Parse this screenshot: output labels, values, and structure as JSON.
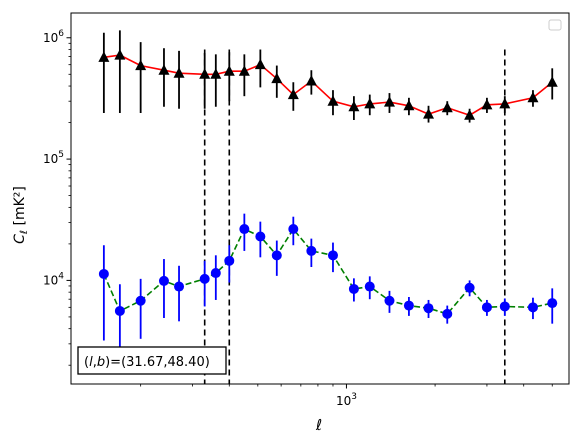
{
  "chart_data": {
    "type": "scatter",
    "title": "",
    "xlabel": "ℓ",
    "ylabel_main": "C",
    "ylabel_sub": "ℓ",
    "ylabel_unit": "[mK²]",
    "x_scale": "log",
    "y_scale": "log",
    "xlim": [
      116,
      5700
    ],
    "ylim": [
      1400,
      1600000
    ],
    "x_ticks": [
      {
        "value": 1000,
        "base": "10",
        "exp": "3"
      }
    ],
    "y_ticks": [
      {
        "value": 10000,
        "base": "10",
        "exp": "4"
      },
      {
        "value": 100000,
        "base": "10",
        "exp": "5"
      },
      {
        "value": 1000000,
        "base": "10",
        "exp": "6"
      }
    ],
    "grid": false,
    "legend_placement": "top-right",
    "vlines": [
      330,
      400,
      3450
    ],
    "annotation": {
      "prefix": "(",
      "l": "l",
      "comma": ",",
      "b": "b",
      "suffix": ")=(31.67,48.40)",
      "placement": "bottom-left"
    },
    "series": [
      {
        "marker": "triangle",
        "marker_color": "#000000",
        "line_color": "#ff0000",
        "line_style": "solid",
        "error_color": "#000000",
        "points": [
          {
            "x": 150,
            "y": 690000,
            "lo": 240000,
            "hi": 1100000
          },
          {
            "x": 170,
            "y": 720000,
            "lo": 240000,
            "hi": 1150000
          },
          {
            "x": 200,
            "y": 590000,
            "lo": 240000,
            "hi": 920000
          },
          {
            "x": 240,
            "y": 540000,
            "lo": 270000,
            "hi": 820000
          },
          {
            "x": 270,
            "y": 510000,
            "lo": 260000,
            "hi": 780000
          },
          {
            "x": 330,
            "y": 500000,
            "lo": 260000,
            "hi": 750000
          },
          {
            "x": 360,
            "y": 500000,
            "lo": 270000,
            "hi": 730000
          },
          {
            "x": 400,
            "y": 530000,
            "lo": 300000,
            "hi": 760000
          },
          {
            "x": 450,
            "y": 530000,
            "lo": 330000,
            "hi": 730000
          },
          {
            "x": 510,
            "y": 600000,
            "lo": 390000,
            "hi": 800000
          },
          {
            "x": 580,
            "y": 460000,
            "lo": 320000,
            "hi": 590000
          },
          {
            "x": 660,
            "y": 340000,
            "lo": 250000,
            "hi": 430000
          },
          {
            "x": 760,
            "y": 440000,
            "lo": 340000,
            "hi": 540000
          },
          {
            "x": 900,
            "y": 300000,
            "lo": 230000,
            "hi": 370000
          },
          {
            "x": 1060,
            "y": 270000,
            "lo": 210000,
            "hi": 330000
          },
          {
            "x": 1200,
            "y": 285000,
            "lo": 230000,
            "hi": 340000
          },
          {
            "x": 1400,
            "y": 295000,
            "lo": 240000,
            "hi": 350000
          },
          {
            "x": 1630,
            "y": 275000,
            "lo": 230000,
            "hi": 320000
          },
          {
            "x": 1900,
            "y": 235000,
            "lo": 200000,
            "hi": 275000
          },
          {
            "x": 2200,
            "y": 265000,
            "lo": 230000,
            "hi": 300000
          },
          {
            "x": 2620,
            "y": 230000,
            "lo": 200000,
            "hi": 260000
          },
          {
            "x": 3000,
            "y": 280000,
            "lo": 240000,
            "hi": 320000
          },
          {
            "x": 3450,
            "y": 285000,
            "lo": 240000,
            "hi": 330000
          },
          {
            "x": 4300,
            "y": 320000,
            "lo": 270000,
            "hi": 370000
          },
          {
            "x": 5000,
            "y": 430000,
            "lo": 310000,
            "hi": 560000
          }
        ]
      },
      {
        "marker": "circle",
        "marker_color": "#0000ff",
        "line_color": "#008000",
        "line_style": "dashed",
        "error_color": "#0000ff",
        "points": [
          {
            "x": 150,
            "y": 11300,
            "lo": 3200,
            "hi": 19500
          },
          {
            "x": 170,
            "y": 5600,
            "lo": 2400,
            "hi": 9300
          },
          {
            "x": 200,
            "y": 6800,
            "lo": 3300,
            "hi": 10300
          },
          {
            "x": 240,
            "y": 9900,
            "lo": 4900,
            "hi": 15000
          },
          {
            "x": 270,
            "y": 8900,
            "lo": 4600,
            "hi": 13200
          },
          {
            "x": 330,
            "y": 10300,
            "lo": 6100,
            "hi": 14500
          },
          {
            "x": 360,
            "y": 11500,
            "lo": 6900,
            "hi": 16100
          },
          {
            "x": 400,
            "y": 14500,
            "lo": 9600,
            "hi": 19500
          },
          {
            "x": 450,
            "y": 26500,
            "lo": 17500,
            "hi": 35500
          },
          {
            "x": 510,
            "y": 23000,
            "lo": 15500,
            "hi": 30500
          },
          {
            "x": 580,
            "y": 16100,
            "lo": 10900,
            "hi": 21300
          },
          {
            "x": 660,
            "y": 26500,
            "lo": 19500,
            "hi": 33500
          },
          {
            "x": 760,
            "y": 17500,
            "lo": 12900,
            "hi": 22100
          },
          {
            "x": 900,
            "y": 16100,
            "lo": 11700,
            "hi": 20500
          },
          {
            "x": 1060,
            "y": 8500,
            "lo": 6700,
            "hi": 10400
          },
          {
            "x": 1200,
            "y": 8900,
            "lo": 7000,
            "hi": 10800
          },
          {
            "x": 1400,
            "y": 6800,
            "lo": 5400,
            "hi": 8200
          },
          {
            "x": 1630,
            "y": 6200,
            "lo": 5100,
            "hi": 7300
          },
          {
            "x": 1900,
            "y": 5900,
            "lo": 4900,
            "hi": 6900
          },
          {
            "x": 2200,
            "y": 5300,
            "lo": 4400,
            "hi": 6200
          },
          {
            "x": 2620,
            "y": 8700,
            "lo": 7400,
            "hi": 10000
          },
          {
            "x": 3000,
            "y": 6000,
            "lo": 5100,
            "hi": 6900
          },
          {
            "x": 3450,
            "y": 6100,
            "lo": 5100,
            "hi": 7100
          },
          {
            "x": 4300,
            "y": 6000,
            "lo": 4800,
            "hi": 7200
          },
          {
            "x": 5000,
            "y": 6500,
            "lo": 4400,
            "hi": 8600
          }
        ]
      }
    ]
  }
}
